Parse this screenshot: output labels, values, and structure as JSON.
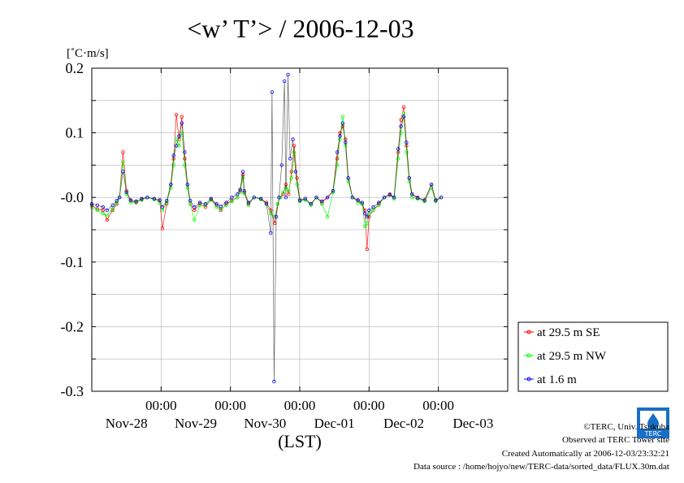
{
  "chart_data": {
    "type": "line",
    "title": "<w’ T’> / 2006-12-03",
    "unit_label": "[˚C·m/s]",
    "xlabel": "(LST)",
    "ylim": [
      -0.3,
      0.2
    ],
    "yticks": [
      0.2,
      0.1,
      -0.0,
      -0.1,
      -0.2,
      -0.3
    ],
    "ytick_labels": [
      "0.2",
      "0.1",
      "-0.0",
      "-0.1",
      "-0.2",
      "-0.3"
    ],
    "xlim": [
      0,
      6
    ],
    "xticks": [
      {
        "x": 1,
        "time": "00:00",
        "date": "Nov-29"
      },
      {
        "x": 2,
        "time": "00:00",
        "date": "Nov-30"
      },
      {
        "x": 3,
        "time": "00:00",
        "date": "Dec-01"
      },
      {
        "x": 4,
        "time": "00:00",
        "date": "Dec-02"
      },
      {
        "x": 5,
        "time": "00:00",
        "date": "Dec-03"
      }
    ],
    "x_first_date": {
      "x": 0.5,
      "label": "Nov-28"
    },
    "grid": true,
    "legend_position": "bottom-right",
    "series": [
      {
        "name": "at 29.5 m SE",
        "color": "#ff0000",
        "points": [
          [
            0,
            -0.012
          ],
          [
            0.08,
            -0.018
          ],
          [
            0.16,
            -0.02
          ],
          [
            0.22,
            -0.035
          ],
          [
            0.3,
            -0.02
          ],
          [
            0.36,
            -0.01
          ],
          [
            0.4,
            0.0
          ],
          [
            0.45,
            0.07
          ],
          [
            0.5,
            0.01
          ],
          [
            0.56,
            -0.005
          ],
          [
            0.64,
            -0.008
          ],
          [
            0.72,
            -0.003
          ],
          [
            0.8,
            0.0
          ],
          [
            0.9,
            -0.002
          ],
          [
            0.98,
            -0.005
          ],
          [
            1.02,
            -0.048
          ],
          [
            1.08,
            -0.01
          ],
          [
            1.14,
            0.02
          ],
          [
            1.18,
            0.06
          ],
          [
            1.22,
            0.128
          ],
          [
            1.26,
            0.09
          ],
          [
            1.3,
            0.125
          ],
          [
            1.34,
            0.06
          ],
          [
            1.38,
            0.02
          ],
          [
            1.42,
            -0.01
          ],
          [
            1.48,
            -0.02
          ],
          [
            1.56,
            -0.01
          ],
          [
            1.64,
            -0.015
          ],
          [
            1.72,
            -0.003
          ],
          [
            1.8,
            -0.012
          ],
          [
            1.86,
            -0.02
          ],
          [
            1.94,
            -0.01
          ],
          [
            2.02,
            -0.005
          ],
          [
            2.1,
            0.0
          ],
          [
            2.14,
            0.01
          ],
          [
            2.18,
            0.035
          ],
          [
            2.2,
            0.008
          ],
          [
            2.26,
            -0.01
          ],
          [
            2.34,
            0.0
          ],
          [
            2.44,
            -0.002
          ],
          [
            2.52,
            -0.008
          ],
          [
            2.58,
            -0.02
          ],
          [
            2.64,
            -0.04
          ],
          [
            2.68,
            -0.01
          ],
          [
            2.72,
            0.0
          ],
          [
            2.76,
            0.005
          ],
          [
            2.8,
            0.02
          ],
          [
            2.84,
            0.005
          ],
          [
            2.88,
            0.04
          ],
          [
            2.92,
            0.08
          ],
          [
            2.96,
            0.03
          ],
          [
            3.0,
            -0.005
          ],
          [
            3.08,
            -0.002
          ],
          [
            3.16,
            -0.01
          ],
          [
            3.24,
            0.0
          ],
          [
            3.32,
            -0.008
          ],
          [
            3.4,
            0.0
          ],
          [
            3.48,
            0.01
          ],
          [
            3.54,
            0.06
          ],
          [
            3.58,
            0.1
          ],
          [
            3.62,
            0.11
          ],
          [
            3.66,
            0.09
          ],
          [
            3.7,
            0.03
          ],
          [
            3.76,
            0.0
          ],
          [
            3.84,
            -0.005
          ],
          [
            3.9,
            -0.01
          ],
          [
            3.94,
            -0.02
          ],
          [
            3.97,
            -0.08
          ],
          [
            4.0,
            -0.03
          ],
          [
            4.06,
            -0.02
          ],
          [
            4.14,
            -0.01
          ],
          [
            4.22,
            0.0
          ],
          [
            4.3,
            0.005
          ],
          [
            4.36,
            0.0
          ],
          [
            4.42,
            0.07
          ],
          [
            4.46,
            0.12
          ],
          [
            4.5,
            0.14
          ],
          [
            4.54,
            0.08
          ],
          [
            4.58,
            0.03
          ],
          [
            4.62,
            0.005
          ],
          [
            4.7,
            0.0
          ],
          [
            4.8,
            -0.005
          ],
          [
            4.9,
            0.02
          ],
          [
            4.96,
            -0.005
          ],
          [
            5.04,
            0.0
          ]
        ]
      },
      {
        "name": "at 29.5 m NW",
        "color": "#00ff00",
        "points": [
          [
            0,
            -0.015
          ],
          [
            0.08,
            -0.02
          ],
          [
            0.16,
            -0.025
          ],
          [
            0.22,
            -0.028
          ],
          [
            0.3,
            -0.018
          ],
          [
            0.36,
            -0.008
          ],
          [
            0.4,
            0.0
          ],
          [
            0.45,
            0.055
          ],
          [
            0.5,
            0.005
          ],
          [
            0.56,
            -0.008
          ],
          [
            0.64,
            -0.007
          ],
          [
            0.72,
            -0.004
          ],
          [
            0.8,
            0.0
          ],
          [
            0.9,
            -0.003
          ],
          [
            0.98,
            -0.008
          ],
          [
            1.02,
            -0.02
          ],
          [
            1.08,
            -0.008
          ],
          [
            1.14,
            0.015
          ],
          [
            1.18,
            0.05
          ],
          [
            1.22,
            0.09
          ],
          [
            1.26,
            0.08
          ],
          [
            1.3,
            0.1
          ],
          [
            1.34,
            0.05
          ],
          [
            1.38,
            0.015
          ],
          [
            1.42,
            -0.01
          ],
          [
            1.48,
            -0.035
          ],
          [
            1.56,
            -0.012
          ],
          [
            1.64,
            -0.012
          ],
          [
            1.72,
            -0.004
          ],
          [
            1.8,
            -0.015
          ],
          [
            1.86,
            -0.018
          ],
          [
            1.94,
            -0.012
          ],
          [
            2.02,
            -0.006
          ],
          [
            2.1,
            0.0
          ],
          [
            2.14,
            0.008
          ],
          [
            2.18,
            0.03
          ],
          [
            2.2,
            0.006
          ],
          [
            2.26,
            -0.012
          ],
          [
            2.34,
            0.0
          ],
          [
            2.44,
            -0.003
          ],
          [
            2.52,
            -0.01
          ],
          [
            2.58,
            -0.025
          ],
          [
            2.64,
            -0.03
          ],
          [
            2.68,
            -0.01
          ],
          [
            2.72,
            0.0
          ],
          [
            2.76,
            0.008
          ],
          [
            2.8,
            0.015
          ],
          [
            2.84,
            0.01
          ],
          [
            2.88,
            0.03
          ],
          [
            2.92,
            0.07
          ],
          [
            2.96,
            0.02
          ],
          [
            3.0,
            -0.006
          ],
          [
            3.08,
            -0.004
          ],
          [
            3.16,
            -0.012
          ],
          [
            3.24,
            0.0
          ],
          [
            3.32,
            -0.01
          ],
          [
            3.4,
            -0.03
          ],
          [
            3.48,
            0.008
          ],
          [
            3.54,
            0.05
          ],
          [
            3.58,
            0.09
          ],
          [
            3.62,
            0.125
          ],
          [
            3.66,
            0.08
          ],
          [
            3.7,
            0.025
          ],
          [
            3.76,
            0.0
          ],
          [
            3.84,
            -0.008
          ],
          [
            3.9,
            -0.01
          ],
          [
            3.94,
            -0.045
          ],
          [
            3.97,
            -0.04
          ],
          [
            4.0,
            -0.025
          ],
          [
            4.06,
            -0.02
          ],
          [
            4.14,
            -0.012
          ],
          [
            4.22,
            0.0
          ],
          [
            4.3,
            0.004
          ],
          [
            4.36,
            -0.002
          ],
          [
            4.42,
            0.06
          ],
          [
            4.46,
            0.1
          ],
          [
            4.5,
            0.13
          ],
          [
            4.54,
            0.07
          ],
          [
            4.58,
            0.025
          ],
          [
            4.62,
            0.0
          ],
          [
            4.7,
            -0.002
          ],
          [
            4.8,
            -0.006
          ],
          [
            4.9,
            0.015
          ],
          [
            4.96,
            -0.006
          ],
          [
            5.04,
            0.0
          ]
        ]
      },
      {
        "name": "at 1.6 m",
        "color": "#0000ff",
        "points": [
          [
            0,
            -0.01
          ],
          [
            0.08,
            -0.012
          ],
          [
            0.16,
            -0.015
          ],
          [
            0.22,
            -0.02
          ],
          [
            0.3,
            -0.012
          ],
          [
            0.36,
            -0.005
          ],
          [
            0.4,
            0.0
          ],
          [
            0.45,
            0.04
          ],
          [
            0.5,
            0.008
          ],
          [
            0.56,
            -0.004
          ],
          [
            0.64,
            -0.006
          ],
          [
            0.72,
            -0.002
          ],
          [
            0.8,
            0.0
          ],
          [
            0.9,
            -0.002
          ],
          [
            0.98,
            -0.004
          ],
          [
            1.02,
            -0.015
          ],
          [
            1.08,
            -0.005
          ],
          [
            1.14,
            0.02
          ],
          [
            1.18,
            0.065
          ],
          [
            1.22,
            0.08
          ],
          [
            1.26,
            0.095
          ],
          [
            1.3,
            0.115
          ],
          [
            1.34,
            0.07
          ],
          [
            1.38,
            0.02
          ],
          [
            1.42,
            -0.005
          ],
          [
            1.48,
            -0.015
          ],
          [
            1.56,
            -0.008
          ],
          [
            1.64,
            -0.01
          ],
          [
            1.72,
            -0.002
          ],
          [
            1.8,
            -0.01
          ],
          [
            1.86,
            -0.014
          ],
          [
            1.94,
            -0.008
          ],
          [
            2.02,
            0.0
          ],
          [
            2.1,
            0.005
          ],
          [
            2.14,
            0.012
          ],
          [
            2.18,
            0.04
          ],
          [
            2.2,
            0.01
          ],
          [
            2.26,
            -0.008
          ],
          [
            2.34,
            0.0
          ],
          [
            2.44,
            -0.002
          ],
          [
            2.52,
            -0.01
          ],
          [
            2.58,
            -0.055
          ],
          [
            2.6,
            0.163
          ],
          [
            2.63,
            -0.285
          ],
          [
            2.66,
            -0.03
          ],
          [
            2.7,
            0.0
          ],
          [
            2.74,
            0.05
          ],
          [
            2.78,
            0.18
          ],
          [
            2.8,
            0.0
          ],
          [
            2.83,
            0.19
          ],
          [
            2.86,
            0.06
          ],
          [
            2.9,
            0.09
          ],
          [
            2.94,
            0.04
          ],
          [
            3.0,
            -0.004
          ],
          [
            3.08,
            -0.002
          ],
          [
            3.16,
            -0.01
          ],
          [
            3.24,
            0.0
          ],
          [
            3.32,
            -0.006
          ],
          [
            3.4,
            0.0
          ],
          [
            3.48,
            0.01
          ],
          [
            3.54,
            0.07
          ],
          [
            3.58,
            0.095
          ],
          [
            3.62,
            0.115
          ],
          [
            3.66,
            0.085
          ],
          [
            3.7,
            0.03
          ],
          [
            3.76,
            0.0
          ],
          [
            3.84,
            -0.004
          ],
          [
            3.9,
            -0.008
          ],
          [
            3.94,
            -0.025
          ],
          [
            3.97,
            -0.03
          ],
          [
            4.0,
            -0.02
          ],
          [
            4.06,
            -0.015
          ],
          [
            4.14,
            -0.008
          ],
          [
            4.22,
            0.0
          ],
          [
            4.3,
            0.004
          ],
          [
            4.36,
            0.0
          ],
          [
            4.42,
            0.075
          ],
          [
            4.46,
            0.11
          ],
          [
            4.5,
            0.125
          ],
          [
            4.54,
            0.085
          ],
          [
            4.58,
            0.03
          ],
          [
            4.62,
            0.005
          ],
          [
            4.7,
            -0.001
          ],
          [
            4.8,
            -0.004
          ],
          [
            4.9,
            0.02
          ],
          [
            4.96,
            -0.004
          ],
          [
            5.04,
            0.0
          ]
        ]
      }
    ]
  },
  "footer": {
    "copyright": "©TERC, Univ. Tsukuba",
    "observed": "Observed at TERC Tower site",
    "created": "Created Automatically at 2006-12-03/23:32:21",
    "source": "Data source : /home/hojyo/new/TERC-data/sorted_data/FLUX.30m.dat"
  },
  "logo": {
    "text": "TERC",
    "color": "#1a6fc4"
  }
}
